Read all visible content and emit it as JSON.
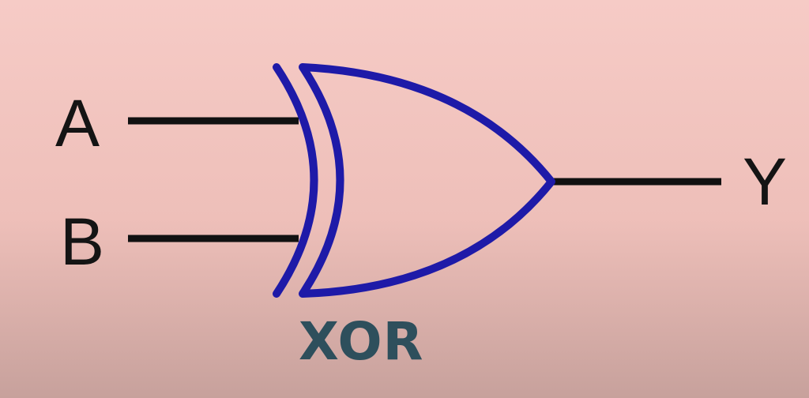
{
  "inputs": [
    {
      "label": "A"
    },
    {
      "label": "B"
    }
  ],
  "output": {
    "label": "Y"
  },
  "gate": {
    "name": "XOR",
    "shape_color": "#1e1aa8",
    "wire_color": "#111111",
    "name_color": "#2e4f5c"
  }
}
